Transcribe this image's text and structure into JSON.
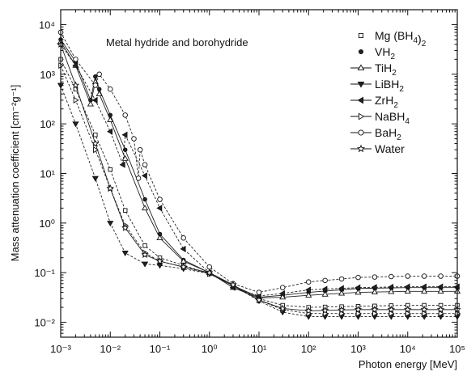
{
  "chart_data": {
    "type": "line",
    "title": "",
    "annotation": "Metal hydride and borohydride",
    "xlabel": "Photon energy [MeV]",
    "ylabel": "Mass attenuation coefficient [cm⁻²g⁻¹]",
    "xscale": "log",
    "yscale": "log",
    "xlim": [
      0.001,
      100000
    ],
    "ylim": [
      0.005,
      20000
    ],
    "x_tick_labels": [
      "10⁻³",
      "10⁻²",
      "10⁻¹",
      "10⁰",
      "10¹",
      "10²",
      "10³",
      "10⁴",
      "10⁵"
    ],
    "y_tick_labels": [
      "10⁻²",
      "10⁻¹",
      "10⁰",
      "10¹",
      "10²",
      "10³",
      "10⁴"
    ],
    "grid": false,
    "legend_position": "top-right",
    "series": [
      {
        "name": "Mg (BH₄)₂",
        "marker": "square",
        "dashed": true,
        "x": [
          0.001,
          0.002,
          0.005,
          0.01,
          0.02,
          0.05,
          0.1,
          0.3,
          1,
          3,
          10,
          30,
          100,
          1000,
          10000,
          100000
        ],
        "y": [
          2000,
          500,
          60,
          12,
          1.8,
          0.35,
          0.2,
          0.14,
          0.095,
          0.055,
          0.03,
          0.022,
          0.02,
          0.021,
          0.022,
          0.022
        ]
      },
      {
        "name": "VH₂",
        "marker": "circle-filled",
        "dashed": false,
        "x": [
          0.001,
          0.002,
          0.004,
          0.005,
          0.006,
          0.01,
          0.02,
          0.05,
          0.1,
          0.3,
          1,
          3,
          10,
          30,
          100,
          1000,
          10000,
          100000
        ],
        "y": [
          5000,
          1800,
          300,
          900,
          500,
          150,
          30,
          3,
          0.6,
          0.18,
          0.1,
          0.055,
          0.032,
          0.035,
          0.04,
          0.048,
          0.05,
          0.05
        ]
      },
      {
        "name": "TiH₂",
        "marker": "triangle-up",
        "dashed": false,
        "x": [
          0.001,
          0.002,
          0.004,
          0.005,
          0.006,
          0.01,
          0.02,
          0.05,
          0.1,
          0.3,
          1,
          3,
          10,
          30,
          100,
          1000,
          10000,
          100000
        ],
        "y": [
          4500,
          1500,
          250,
          700,
          400,
          120,
          20,
          2,
          0.5,
          0.17,
          0.1,
          0.05,
          0.031,
          0.032,
          0.035,
          0.04,
          0.042,
          0.042
        ]
      },
      {
        "name": "LiBH₂",
        "marker": "triangle-down",
        "dashed": true,
        "x": [
          0.001,
          0.002,
          0.005,
          0.01,
          0.02,
          0.05,
          0.1,
          0.3,
          1,
          3,
          10,
          30,
          100,
          1000,
          10000,
          100000
        ],
        "y": [
          600,
          100,
          8,
          1,
          0.25,
          0.15,
          0.14,
          0.12,
          0.095,
          0.055,
          0.027,
          0.016,
          0.013,
          0.013,
          0.013,
          0.013
        ]
      },
      {
        "name": "ZrH₂",
        "marker": "triangle-left",
        "dashed": true,
        "x": [
          0.001,
          0.002,
          0.005,
          0.01,
          0.018,
          0.02,
          0.05,
          0.1,
          0.3,
          1,
          3,
          10,
          30,
          100,
          1000,
          10000,
          100000
        ],
        "y": [
          4000,
          1500,
          300,
          70,
          15,
          60,
          9,
          2,
          0.3,
          0.1,
          0.05,
          0.034,
          0.038,
          0.045,
          0.05,
          0.052,
          0.052
        ]
      },
      {
        "name": "NaBH₄",
        "marker": "triangle-right",
        "dashed": true,
        "x": [
          0.001,
          0.002,
          0.005,
          0.01,
          0.02,
          0.05,
          0.1,
          0.3,
          1,
          3,
          10,
          30,
          100,
          1000,
          10000,
          100000
        ],
        "y": [
          1500,
          300,
          30,
          5,
          0.9,
          0.25,
          0.17,
          0.13,
          0.095,
          0.055,
          0.028,
          0.018,
          0.015,
          0.015,
          0.015,
          0.015
        ]
      },
      {
        "name": "BaH₂",
        "marker": "circle-open",
        "dashed": true,
        "x": [
          0.001,
          0.002,
          0.005,
          0.006,
          0.01,
          0.02,
          0.03,
          0.037,
          0.04,
          0.05,
          0.1,
          0.3,
          1,
          3,
          10,
          30,
          100,
          1000,
          10000,
          100000
        ],
        "y": [
          7000,
          2000,
          600,
          1000,
          500,
          150,
          50,
          8,
          30,
          15,
          3,
          0.5,
          0.13,
          0.06,
          0.04,
          0.05,
          0.065,
          0.08,
          0.085,
          0.085
        ]
      },
      {
        "name": "Water",
        "marker": "star",
        "dashed": false,
        "x": [
          0.001,
          0.002,
          0.005,
          0.01,
          0.02,
          0.05,
          0.1,
          0.3,
          1,
          3,
          10,
          30,
          100,
          1000,
          10000,
          100000
        ],
        "y": [
          4000,
          600,
          40,
          5,
          0.8,
          0.23,
          0.17,
          0.13,
          0.1,
          0.057,
          0.028,
          0.019,
          0.017,
          0.018,
          0.018,
          0.018
        ]
      }
    ]
  }
}
